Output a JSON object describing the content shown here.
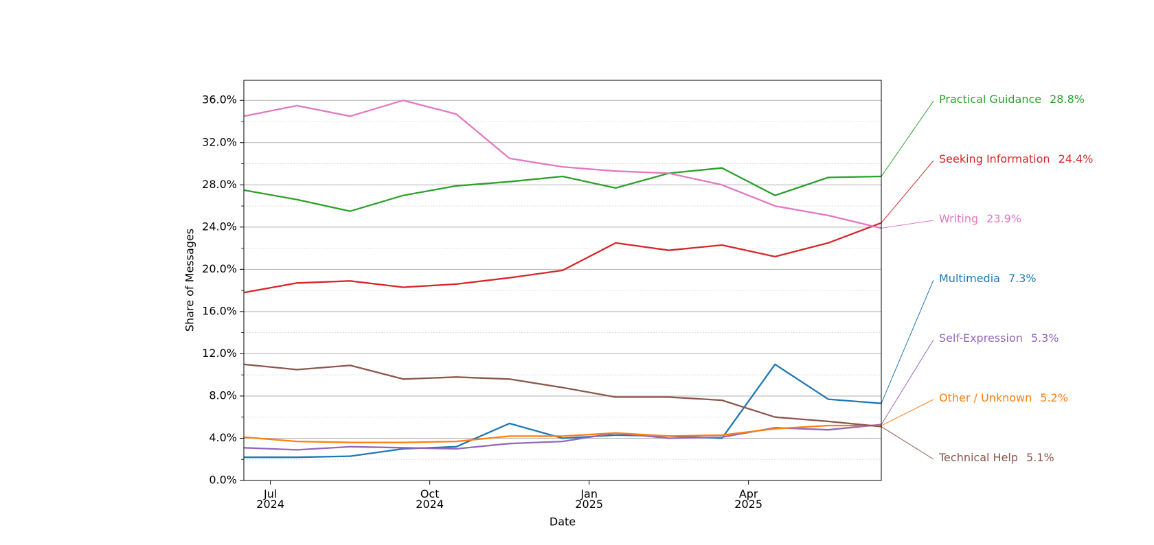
{
  "chart_data": {
    "type": "line",
    "y_label": "Share of Messages",
    "x_label": "Date",
    "x": [
      "2024-06",
      "2024-07",
      "2024-08",
      "2024-09",
      "2024-10",
      "2024-11",
      "2024-12",
      "2025-01",
      "2025-02",
      "2025-03",
      "2025-04",
      "2025-05",
      "2025-06"
    ],
    "xlim": [
      "2024-06",
      "2025-06"
    ],
    "xticks": [
      {
        "value": "2024-07",
        "label": "Jul\n2024"
      },
      {
        "value": "2024-10",
        "label": "Oct\n2024"
      },
      {
        "value": "2025-01",
        "label": "Jan\n2025"
      },
      {
        "value": "2025-04",
        "label": "Apr\n2025"
      }
    ],
    "ylim": [
      0,
      37.9
    ],
    "yticks": [
      {
        "value": 0,
        "label": "0.0%"
      },
      {
        "value": 4,
        "label": "4.0%"
      },
      {
        "value": 8,
        "label": "8.0%"
      },
      {
        "value": 12,
        "label": "12.0%"
      },
      {
        "value": 16,
        "label": "16.0%"
      },
      {
        "value": 20,
        "label": "20.0%"
      },
      {
        "value": 24,
        "label": "24.0%"
      },
      {
        "value": 28,
        "label": "28.0%"
      },
      {
        "value": 32,
        "label": "32.0%"
      },
      {
        "value": 36,
        "label": "36.0%"
      }
    ],
    "yminorticks": [
      2,
      6,
      10,
      14,
      18,
      22,
      26,
      30,
      34
    ],
    "grid": true,
    "series": [
      {
        "name": "Practical Guidance",
        "color": "#2ca02c",
        "values": [
          27.5,
          26.6,
          25.5,
          27.0,
          27.9,
          28.3,
          28.8,
          27.7,
          29.1,
          29.6,
          27.0,
          28.7,
          28.8
        ],
        "value_labels": [
          null,
          null,
          null,
          null,
          null,
          null,
          null,
          null,
          null,
          null,
          null,
          null,
          "28.8%"
        ]
      },
      {
        "name": "Seeking Information",
        "color": "#d62728",
        "values": [
          17.8,
          18.7,
          18.9,
          18.3,
          18.6,
          19.2,
          19.9,
          22.5,
          21.8,
          22.3,
          21.2,
          22.5,
          24.4
        ],
        "value_labels": [
          null,
          null,
          null,
          null,
          null,
          null,
          null,
          null,
          null,
          null,
          null,
          null,
          "24.4%"
        ]
      },
      {
        "name": "Writing",
        "color": "#e377c2",
        "values": [
          34.5,
          35.5,
          34.5,
          36.0,
          34.7,
          30.5,
          29.7,
          29.3,
          29.1,
          28.0,
          26.0,
          25.1,
          23.9
        ],
        "value_labels": [
          null,
          null,
          null,
          null,
          null,
          null,
          null,
          null,
          null,
          null,
          null,
          null,
          "23.9%"
        ]
      },
      {
        "name": "Multimedia",
        "color": "#1f77b4",
        "values": [
          2.2,
          2.2,
          2.3,
          3.0,
          3.2,
          5.4,
          4.0,
          4.3,
          4.2,
          4.0,
          11.0,
          7.7,
          7.3
        ],
        "value_labels": [
          null,
          null,
          null,
          null,
          null,
          null,
          null,
          null,
          null,
          null,
          null,
          null,
          "7.3%"
        ]
      },
      {
        "name": "Self-Expression",
        "color": "#9467bd",
        "values": [
          3.1,
          2.9,
          3.2,
          3.1,
          3.0,
          3.5,
          3.7,
          4.5,
          4.0,
          4.1,
          5.0,
          4.8,
          5.3
        ],
        "value_labels": [
          null,
          null,
          null,
          null,
          null,
          null,
          null,
          null,
          null,
          null,
          null,
          null,
          "5.3%"
        ]
      },
      {
        "name": "Other / Unknown",
        "color": "#ff7f0e",
        "values": [
          4.1,
          3.7,
          3.6,
          3.6,
          3.7,
          4.2,
          4.2,
          4.5,
          4.2,
          4.3,
          4.9,
          5.2,
          5.2
        ],
        "value_labels": [
          null,
          null,
          null,
          null,
          null,
          null,
          null,
          null,
          null,
          null,
          null,
          null,
          "5.2%"
        ]
      },
      {
        "name": "Technical Help",
        "color": "#8c564b",
        "values": [
          11.0,
          10.5,
          10.9,
          9.6,
          9.8,
          9.6,
          8.8,
          7.9,
          7.9,
          7.6,
          6.0,
          5.6,
          5.1
        ],
        "value_labels": [
          null,
          null,
          null,
          null,
          null,
          null,
          null,
          null,
          null,
          null,
          null,
          null,
          "5.1%"
        ]
      }
    ]
  }
}
